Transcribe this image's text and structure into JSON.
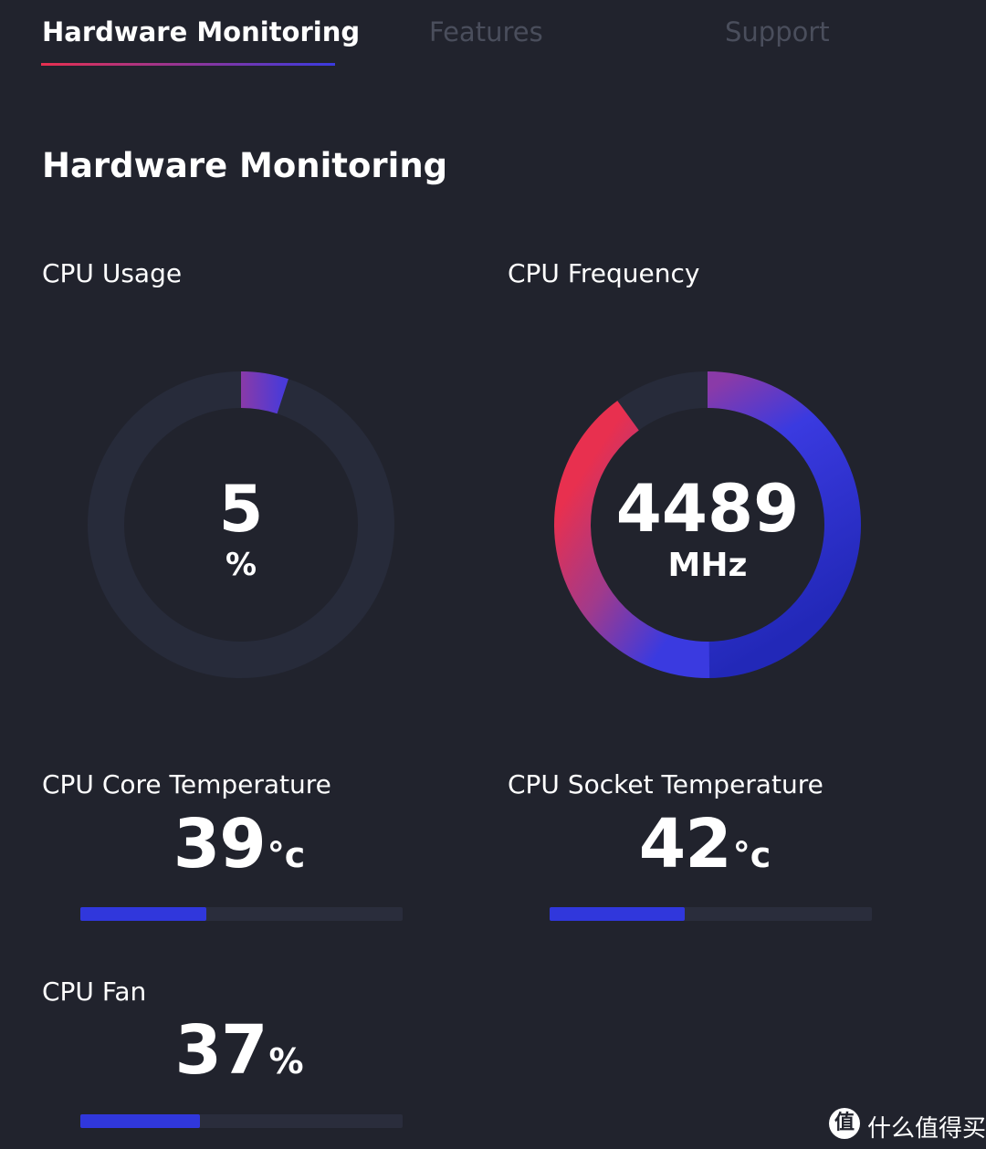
{
  "tabs": [
    {
      "label": "Hardware Monitoring",
      "active": true
    },
    {
      "label": "Features",
      "active": false
    },
    {
      "label": "Support",
      "active": false
    }
  ],
  "section_title": "Hardware Monitoring",
  "cpu_usage": {
    "label": "CPU Usage",
    "value": "5",
    "unit": "%",
    "fraction": 0.05
  },
  "cpu_frequency": {
    "label": "CPU Frequency",
    "value": "4489",
    "unit": "MHz",
    "fraction": 0.9
  },
  "cpu_core_temp": {
    "label": "CPU Core Temperature",
    "value": "39",
    "unit": "°c",
    "fraction": 0.39
  },
  "cpu_socket_temp": {
    "label": "CPU Socket Temperature",
    "value": "42",
    "unit": "°c",
    "fraction": 0.42
  },
  "cpu_fan": {
    "label": "CPU Fan",
    "value": "37",
    "unit": "%",
    "fraction": 0.37
  },
  "watermark": {
    "icon": "值",
    "text": "什么值得买"
  },
  "colors": {
    "background": "#21232d",
    "track": "#272b3a",
    "accent_blue": "#3037dc",
    "accent_red": "#e8304f",
    "accent_purple": "#8a3aa8",
    "tab_inactive": "#4a4e5c"
  }
}
